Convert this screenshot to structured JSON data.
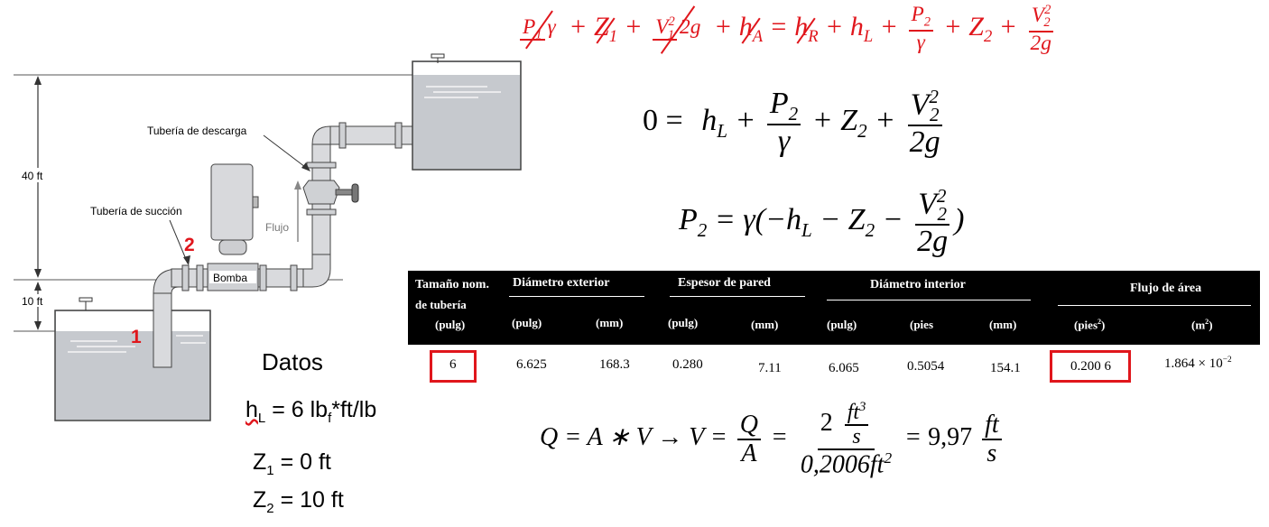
{
  "diagram": {
    "label_40ft": "40 ft",
    "label_10ft": "10 ft",
    "label_descarga": "Tubería de descarga",
    "label_succion": "Tubería de succión",
    "label_flujo": "Flujo",
    "label_bomba": "Bomba",
    "point1": "1",
    "point2": "2"
  },
  "equations": {
    "eq1": {
      "p1": "P",
      "p1_sub": "1",
      "gamma": "γ",
      "plus": "+",
      "z1": "Z",
      "z1_sub": "1",
      "v1": "V",
      "v1_sub": "1",
      "sq": "2",
      "twog": "2g",
      "ha": "h",
      "ha_sub": "A",
      "eq": "=",
      "hr": "h",
      "hr_sub": "R",
      "hl": "h",
      "hl_sub": "L",
      "p2": "P",
      "p2_sub": "2",
      "z2": "Z",
      "z2_sub": "2",
      "v2": "V",
      "v2_sub": "2"
    },
    "eq2": {
      "zero": "0 =",
      "hl": "h",
      "hl_sub": "L",
      "plus": "+",
      "p2": "P",
      "p2_sub": "2",
      "gamma": "γ",
      "z2": "Z",
      "z2_sub": "2",
      "v2": "V",
      "v2_sub": "2",
      "sq": "2",
      "twog": "2g"
    },
    "eq3": {
      "p2": "P",
      "p2_sub": "2",
      "eq": "=",
      "gamma_open": "γ(−",
      "hl": "h",
      "hl_sub": "L",
      "minus": "−",
      "z2": "Z",
      "z2_sub": "2",
      "v2": "V",
      "v2_sub": "2",
      "sq": "2",
      "twog": "2g",
      "close": ")"
    },
    "eq4": {
      "lhs": "Q = A ∗ V → V =",
      "q": "Q",
      "a": "A",
      "eq": "=",
      "num": "2",
      "ft": "ft",
      "cube": "3",
      "s": "s",
      "den": "0,2006ft",
      "dsq": "2",
      "eq2": "=",
      "result": "9,97",
      "ft2": "ft",
      "s2": "s"
    }
  },
  "table": {
    "headers": {
      "nominal": "Tamaño nom.",
      "nominal2": "de tubería",
      "nominal_unit": "(pulg)",
      "outer": "Diámetro exterior",
      "wall": "Espesor de pared",
      "inner": "Diámetro interior",
      "area": "Flujo de área",
      "u_pulg": "(pulg)",
      "u_mm": "(mm)",
      "u_pies": "(pies",
      "u_pies_close": ")",
      "u_m": "(m",
      "u_m_close": ")",
      "sq": "2"
    },
    "row": {
      "nominal": "6",
      "outer_in": "6.625",
      "outer_mm": "168.3",
      "wall_in": "0.280",
      "wall_mm": "7.11",
      "inner_in": "6.065",
      "inner_ft": "0.5054",
      "inner_mm": "154.1",
      "area_ft2": "0.200 6",
      "area_m2": "1.864 × 10",
      "area_m2_exp": "−2"
    }
  },
  "datos": {
    "title": "Datos",
    "hl_lhs": "h",
    "hl_sub": "L",
    "hl_val": " =  6 lb",
    "hl_f": "f",
    "hl_rest": "*ft/lb",
    "z1_lhs": "Z",
    "z1_sub": "1",
    "z1_val": " = 0 ft",
    "z2_lhs": "Z",
    "z2_sub": "2",
    "z2_val": " = 10 ft"
  },
  "colors": {
    "accent": "#e0161c",
    "water": "#b7bbc1",
    "tank_fill": "#c9ccd1",
    "pipe": "#d9dadd"
  }
}
